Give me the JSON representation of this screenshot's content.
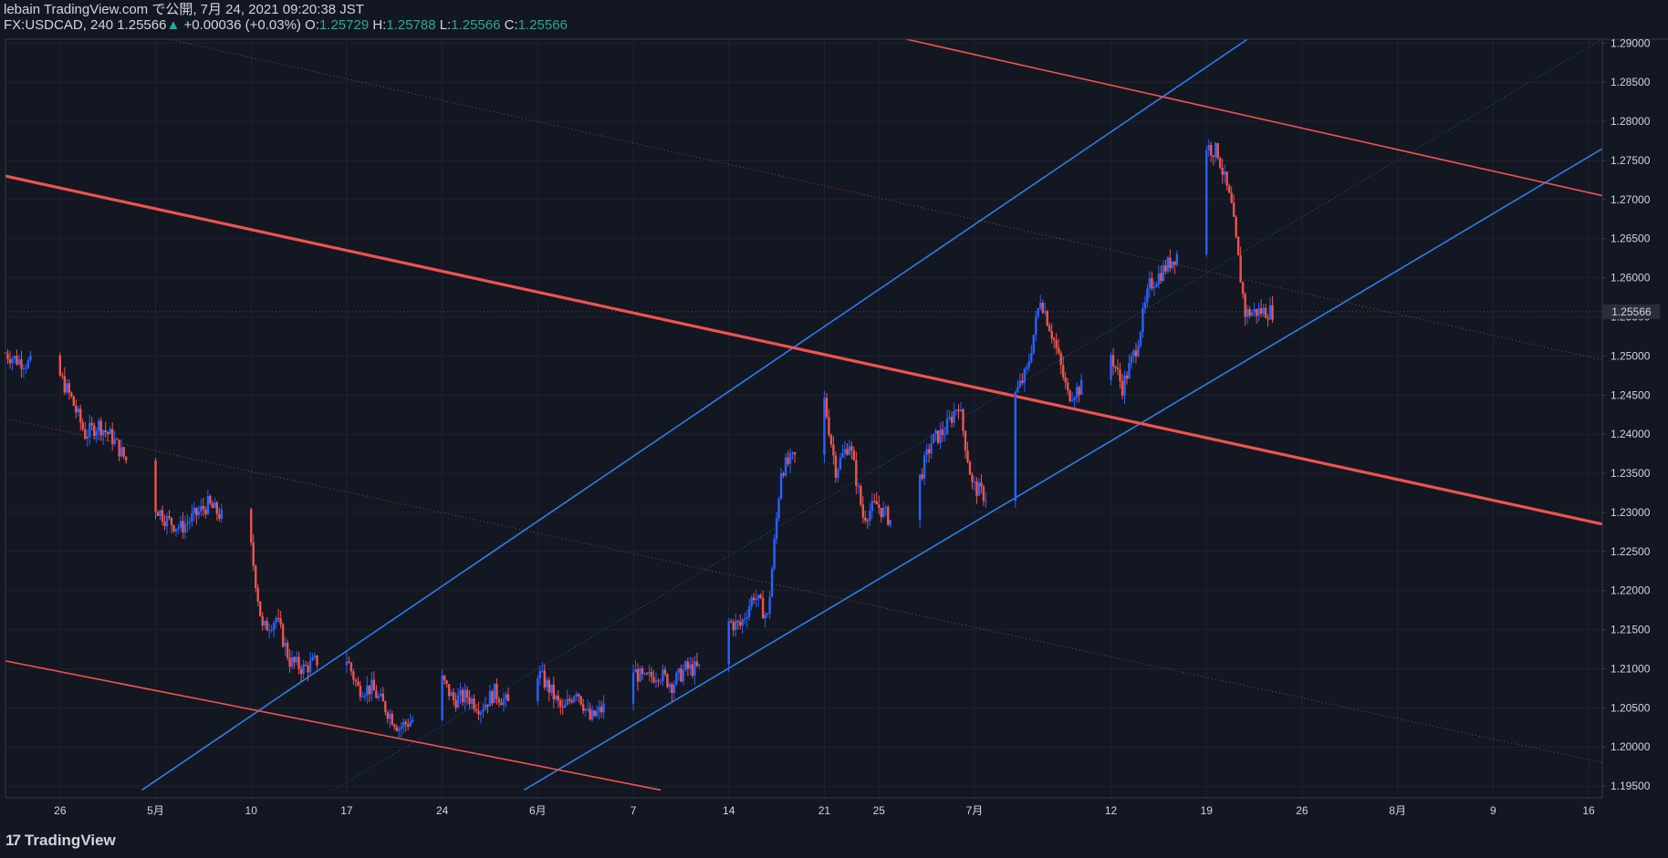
{
  "header": {
    "publisher_line": "lebain TradingView.com で公開, 7月 24, 2021 09:20:38 JST",
    "symbol": "FX:USDCAD, 240",
    "last": "1.25566",
    "change_arrow": "▲",
    "change": "+0.00036 (+0.03%)",
    "o_label": "O:",
    "o_value": "1.25729",
    "h_label": "H:",
    "h_value": "1.25788",
    "l_label": "L:",
    "l_value": "1.25566",
    "c_label": "C:",
    "c_value": "1.25566"
  },
  "footer": {
    "logo_mark": "17",
    "logo_text": "TradingView"
  },
  "colors": {
    "background": "#131722",
    "up": "#2962ff",
    "down": "#ef5350",
    "blue_line": "#2a7fe8",
    "red_line": "#ef5350",
    "text": "#d1d4dc",
    "last_price_label": "#d1d4dc"
  },
  "chart_data": {
    "type": "candlestick",
    "symbol": "FX:USDCAD",
    "timeframe": "240",
    "y_ticks": [
      "1.29000",
      "1.28500",
      "1.28000",
      "1.27500",
      "1.27000",
      "1.26500",
      "1.26000",
      "1.25500",
      "1.25000",
      "1.24500",
      "1.24000",
      "1.23500",
      "1.23000",
      "1.22500",
      "1.22000",
      "1.21500",
      "1.21000",
      "1.20500",
      "1.20000",
      "1.19500"
    ],
    "ylim": [
      1.1935,
      1.2905
    ],
    "last_price_label": "1.25566",
    "x_ticks": [
      "26",
      "5月",
      "10",
      "17",
      "24",
      "6月",
      "7",
      "14",
      "21",
      "25",
      "7月",
      "12",
      "19",
      "26",
      "8月",
      "9",
      "16"
    ],
    "x_tick_dates": [
      "2021-04-26",
      "2021-05-03",
      "2021-05-10",
      "2021-05-17",
      "2021-05-24",
      "2021-05-31",
      "2021-06-07",
      "2021-06-14",
      "2021-06-21",
      "2021-06-25",
      "2021-07-02",
      "2021-07-12",
      "2021-07-19",
      "2021-07-26",
      "2021-08-02",
      "2021-08-09",
      "2021-08-16"
    ],
    "price_path": [
      [
        "2021-04-22",
        1.2505
      ],
      [
        "2021-04-23",
        1.2495
      ],
      [
        "2021-04-26",
        1.248
      ],
      [
        "2021-04-27",
        1.2445
      ],
      [
        "2021-04-28",
        1.24
      ],
      [
        "2021-04-29",
        1.2412
      ],
      [
        "2021-04-30",
        1.2395
      ],
      [
        "2021-05-03",
        1.231
      ],
      [
        "2021-05-04",
        1.229
      ],
      [
        "2021-05-05",
        1.228
      ],
      [
        "2021-05-06",
        1.2295
      ],
      [
        "2021-05-07",
        1.231
      ],
      [
        "2021-05-08",
        1.2295
      ],
      [
        "2021-05-10",
        1.2275
      ],
      [
        "2021-05-11",
        1.215
      ],
      [
        "2021-05-12",
        1.2165
      ],
      [
        "2021-05-13",
        1.211
      ],
      [
        "2021-05-14",
        1.21
      ],
      [
        "2021-05-15",
        1.211
      ],
      [
        "2021-05-17",
        1.212
      ],
      [
        "2021-05-18",
        1.2075
      ],
      [
        "2021-05-19",
        1.2075
      ],
      [
        "2021-05-20",
        1.205
      ],
      [
        "2021-05-21",
        1.2025
      ],
      [
        "2021-05-22",
        1.2035
      ],
      [
        "2021-05-24",
        1.209
      ],
      [
        "2021-05-25",
        1.206
      ],
      [
        "2021-05-26",
        1.2065
      ],
      [
        "2021-05-27",
        1.205
      ],
      [
        "2021-05-28",
        1.207
      ],
      [
        "2021-05-29",
        1.2055
      ],
      [
        "2021-05-31",
        1.21
      ],
      [
        "2021-06-01",
        1.2075
      ],
      [
        "2021-06-02",
        1.2045
      ],
      [
        "2021-06-03",
        1.2075
      ],
      [
        "2021-06-04",
        1.2035
      ],
      [
        "2021-06-05",
        1.205
      ],
      [
        "2021-06-07",
        1.21
      ],
      [
        "2021-06-08",
        1.2085
      ],
      [
        "2021-06-09",
        1.2095
      ],
      [
        "2021-06-10",
        1.208
      ],
      [
        "2021-06-11",
        1.21
      ],
      [
        "2021-06-12",
        1.21
      ],
      [
        "2021-06-14",
        1.216
      ],
      [
        "2021-06-15",
        1.2155
      ],
      [
        "2021-06-16",
        1.2195
      ],
      [
        "2021-06-17",
        1.2165
      ],
      [
        "2021-06-18",
        1.2355
      ],
      [
        "2021-06-19",
        1.237
      ],
      [
        "2021-06-21",
        1.246
      ],
      [
        "2021-06-22",
        1.2355
      ],
      [
        "2021-06-23",
        1.239
      ],
      [
        "2021-06-24",
        1.2295
      ],
      [
        "2021-06-25",
        1.231
      ],
      [
        "2021-06-26",
        1.229
      ],
      [
        "2021-06-28",
        1.2335
      ],
      [
        "2021-06-29",
        1.239
      ],
      [
        "2021-06-30",
        1.2405
      ],
      [
        "2021-07-01",
        1.244
      ],
      [
        "2021-07-02",
        1.2335
      ],
      [
        "2021-07-03",
        1.232
      ],
      [
        "2021-07-05",
        1.2445
      ],
      [
        "2021-07-06",
        1.248
      ],
      [
        "2021-07-07",
        1.2575
      ],
      [
        "2021-07-08",
        1.252
      ],
      [
        "2021-07-09",
        1.245
      ],
      [
        "2021-07-10",
        1.246
      ],
      [
        "2021-07-12",
        1.251
      ],
      [
        "2021-07-13",
        1.246
      ],
      [
        "2021-07-14",
        1.251
      ],
      [
        "2021-07-15",
        1.259
      ],
      [
        "2021-07-16",
        1.261
      ],
      [
        "2021-07-17",
        1.263
      ],
      [
        "2021-07-19",
        1.277
      ],
      [
        "2021-07-20",
        1.276
      ],
      [
        "2021-07-21",
        1.269
      ],
      [
        "2021-07-22",
        1.2555
      ],
      [
        "2021-07-23",
        1.2557
      ],
      [
        "2021-07-24",
        1.2557
      ]
    ],
    "drawings": [
      {
        "name": "upper-channel-line",
        "color": "blue",
        "style": "solid",
        "points": [
          [
            "2021-05-02",
            1.1945
          ],
          [
            "2021-07-22",
            1.2905
          ]
        ]
      },
      {
        "name": "lower-channel-line",
        "color": "blue",
        "style": "solid",
        "points": [
          [
            "2021-05-30",
            1.1945
          ],
          [
            "2021-08-17",
            1.2765
          ]
        ]
      },
      {
        "name": "channel-median-line",
        "color": "blue",
        "style": "dotted",
        "points": [
          [
            "2021-05-16",
            1.1945
          ],
          [
            "2021-08-17",
            1.2905
          ]
        ]
      },
      {
        "name": "thick-resistance-line",
        "color": "red",
        "style": "thick",
        "points": [
          [
            "2021-04-22",
            1.273
          ],
          [
            "2021-08-17",
            1.2285
          ]
        ]
      },
      {
        "name": "upper-red-channel-line",
        "color": "red",
        "style": "solid",
        "points": [
          [
            "2021-06-27",
            1.2905
          ],
          [
            "2021-08-17",
            1.2705
          ]
        ]
      },
      {
        "name": "lower-red-channel-line",
        "color": "red",
        "style": "solid",
        "points": [
          [
            "2021-04-22",
            1.211
          ],
          [
            "2021-06-09",
            1.1945
          ]
        ]
      },
      {
        "name": "red-dotted-top",
        "color": "red",
        "style": "dotted",
        "points": [
          [
            "2021-05-04",
            1.2905
          ],
          [
            "2021-08-17",
            1.2495
          ]
        ]
      },
      {
        "name": "red-dotted-bottom",
        "color": "red",
        "style": "dotted",
        "points": [
          [
            "2021-04-22",
            1.242
          ],
          [
            "2021-08-17",
            1.198
          ]
        ]
      }
    ],
    "grid": true,
    "legend": "none"
  }
}
